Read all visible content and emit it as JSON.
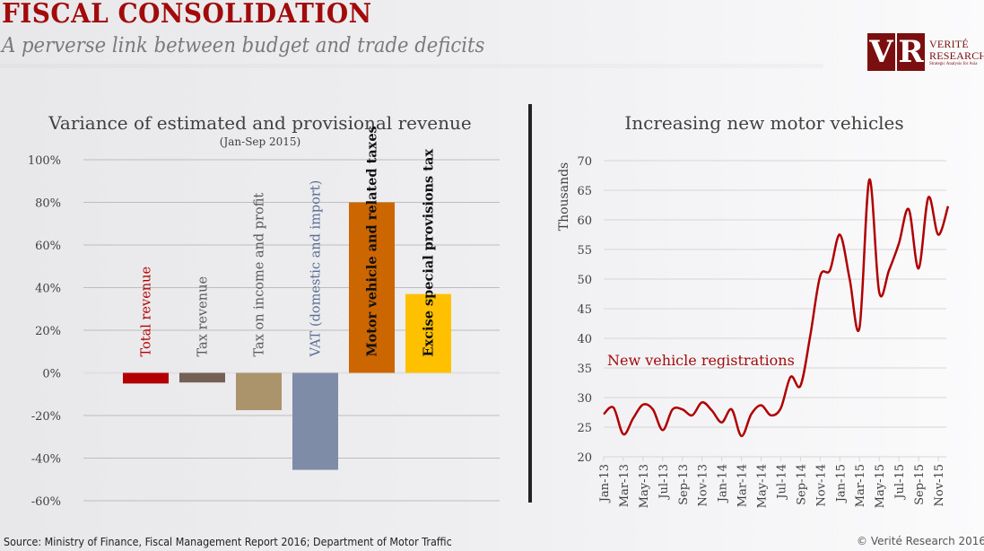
{
  "header": {
    "title": "FISCAL CONSOLIDATION",
    "subtitle": "A perverse link between budget and trade deficits"
  },
  "logo": {
    "letter_v": "V",
    "letter_r": "R",
    "line1": "VERITÉ",
    "line2": "RESEARCH",
    "tagline": "Strategic Analysis for Asia",
    "color": "#7b0f0f"
  },
  "footer": {
    "source": "Source: Ministry of Finance, Fiscal Management Report 2016; Department of Motor Traffic",
    "copyright": "© Verité Research 2016"
  },
  "chart_data": [
    {
      "type": "bar",
      "title": "Variance of estimated and provisional revenue",
      "subtitle": "(Jan-Sep 2015)",
      "xlabel": "",
      "ylabel": "",
      "ylim": [
        -60,
        100
      ],
      "yticks": [
        100,
        80,
        60,
        40,
        20,
        0,
        -20,
        -40,
        -60
      ],
      "ytick_labels": [
        "100%",
        "80%",
        "60%",
        "40%",
        "20%",
        "0%",
        "-20%",
        "-40%",
        "-60%"
      ],
      "grid": true,
      "categories": [
        "Total revenue",
        "Tax revenue",
        "Tax on income and profit",
        "VAT (domestic and import)",
        "Motor vehicle and related taxes",
        "Excise special provisions tax"
      ],
      "values": [
        -5,
        -4.5,
        -17.5,
        -45.5,
        80,
        37
      ],
      "bar_colors": [
        "#b30000",
        "#746055",
        "#ab936c",
        "#7f8ca8",
        "#cc6600",
        "#ffc000"
      ],
      "label_colors": [
        "#b30000",
        "#595959",
        "#595959",
        "#5a6e94",
        "#111111",
        "#111111"
      ]
    },
    {
      "type": "line",
      "title": "Increasing new motor vehicles",
      "xlabel": "",
      "ylabel": "Thousands",
      "ylim": [
        20,
        70
      ],
      "yticks": [
        20,
        25,
        30,
        35,
        40,
        45,
        50,
        55,
        60,
        65,
        70
      ],
      "grid": true,
      "x_tick_labels": [
        "Jan-13",
        "Mar-13",
        "May-13",
        "Jul-13",
        "Sep-13",
        "Nov-13",
        "Jan-14",
        "Mar-14",
        "May-14",
        "Jul-14",
        "Sep-14",
        "Nov-14",
        "Jan-15",
        "Mar-15",
        "May-15",
        "Jul-15",
        "Sep-15",
        "Nov-15"
      ],
      "x": [
        "Jan-13",
        "Feb-13",
        "Mar-13",
        "Apr-13",
        "May-13",
        "Jun-13",
        "Jul-13",
        "Aug-13",
        "Sep-13",
        "Oct-13",
        "Nov-13",
        "Dec-13",
        "Jan-14",
        "Feb-14",
        "Mar-14",
        "Apr-14",
        "May-14",
        "Jun-14",
        "Jul-14",
        "Aug-14",
        "Sep-14",
        "Oct-14",
        "Nov-14",
        "Dec-14",
        "Jan-15",
        "Feb-15",
        "Mar-15",
        "Apr-15",
        "May-15",
        "Jun-15",
        "Jul-15",
        "Aug-15",
        "Sep-15",
        "Oct-15",
        "Nov-15",
        "Dec-15"
      ],
      "series": [
        {
          "name": "New vehicle registrations",
          "color": "#b00000",
          "values": [
            27.2,
            28.3,
            23.8,
            26.5,
            28.8,
            28.0,
            24.5,
            28.0,
            28.0,
            27.0,
            29.2,
            27.8,
            25.8,
            28.0,
            23.5,
            27.2,
            28.7,
            27.0,
            28.2,
            33.5,
            32.0,
            40.5,
            50.5,
            51.5,
            57.5,
            50.0,
            41.8,
            66.8,
            47.8,
            51.5,
            56.0,
            61.8,
            51.8,
            63.8,
            57.5,
            62.3
          ]
        }
      ],
      "annotations": [
        "New vehicle registrations"
      ]
    }
  ]
}
